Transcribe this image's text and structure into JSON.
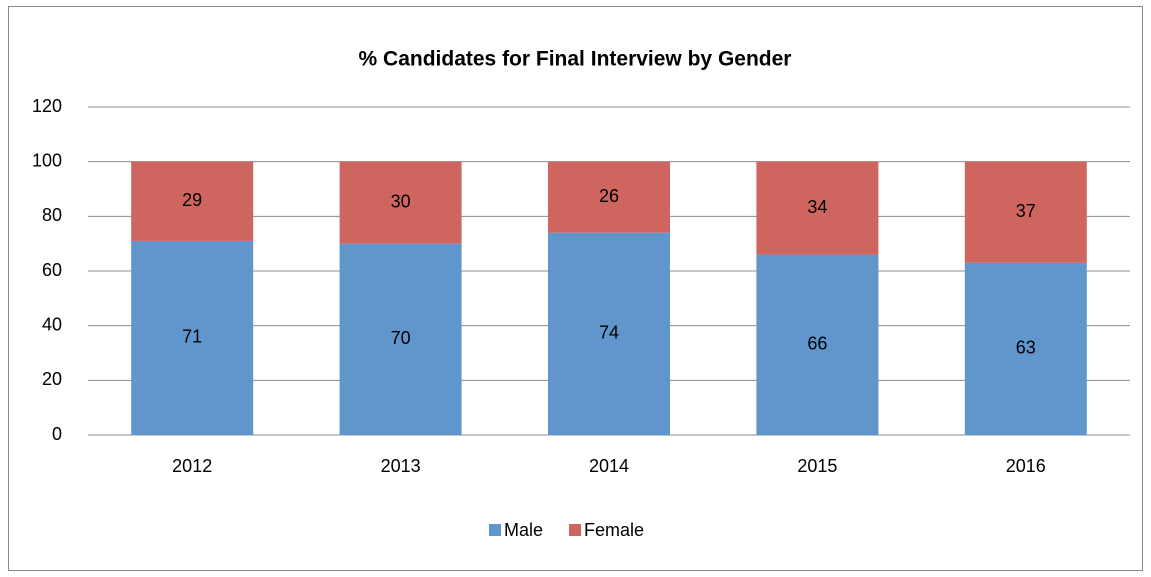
{
  "chart_data": {
    "type": "stacked_bar",
    "title": "% Candidates for Final Interview by Gender",
    "categories": [
      "2012",
      "2013",
      "2014",
      "2015",
      "2016"
    ],
    "series": [
      {
        "name": "Male",
        "color": "#6096cc",
        "values": [
          71,
          70,
          74,
          66,
          63
        ]
      },
      {
        "name": "Female",
        "color": "#cf655f",
        "values": [
          29,
          30,
          26,
          34,
          37
        ]
      }
    ],
    "ylim": [
      0,
      120
    ],
    "yticks": [
      0,
      20,
      40,
      60,
      80,
      100,
      120
    ],
    "grid": true,
    "legend": "bottom"
  }
}
